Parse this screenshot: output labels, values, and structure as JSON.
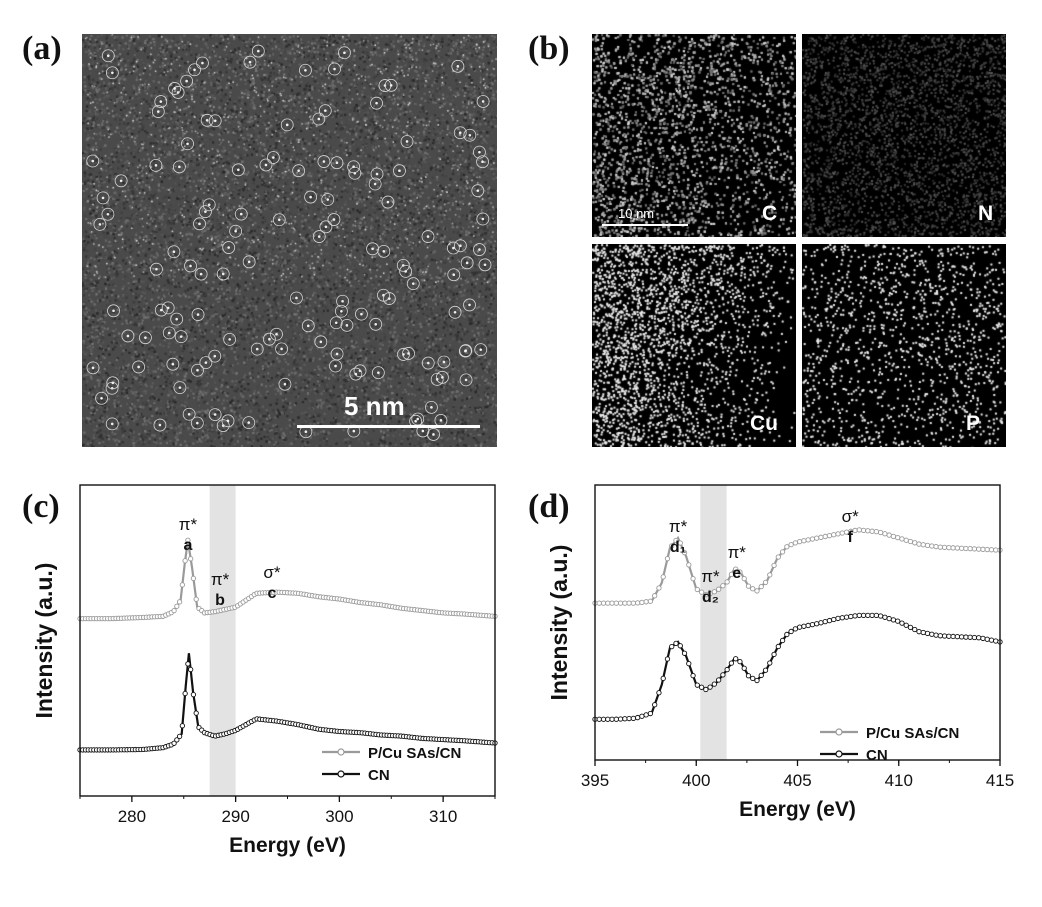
{
  "panels": {
    "a": {
      "label": "(a)",
      "scale_bar_text": "5 nm"
    },
    "b": {
      "label": "(b)",
      "scale_bar_text": "10 nm",
      "maps": [
        {
          "element": "C",
          "density": 0.6,
          "tone": "gray"
        },
        {
          "element": "N",
          "density": 0.3,
          "tone": "dim"
        },
        {
          "element": "Cu",
          "density": 0.35,
          "tone": "white"
        },
        {
          "element": "P",
          "density": 0.12,
          "tone": "white"
        }
      ]
    },
    "c": {
      "label": "(c)"
    },
    "d": {
      "label": "(d)"
    }
  },
  "chart_data": [
    {
      "type": "line",
      "panel": "(c)",
      "xlabel": "Energy (eV)",
      "ylabel": "Intensity (a.u.)",
      "xlim": [
        275,
        315
      ],
      "xticks": [
        280,
        290,
        300,
        310
      ],
      "shaded_region": [
        287.5,
        290
      ],
      "annotations": [
        {
          "symbol": "π*",
          "letter": "a",
          "x": 285.4
        },
        {
          "symbol": "π*",
          "letter": "b",
          "x": 288.5
        },
        {
          "symbol": "σ*",
          "letter": "c",
          "x": 293.5
        }
      ],
      "series": [
        {
          "name": "P/Cu SAs/CN",
          "color": "#9a9a9a",
          "x": [
            275,
            278,
            281,
            283,
            284,
            284.7,
            285.1,
            285.4,
            285.8,
            286.3,
            287,
            288,
            289,
            290,
            291,
            292,
            294,
            296,
            298,
            300,
            302,
            304,
            306,
            308,
            310,
            312,
            315
          ],
          "y": [
            6.2,
            6.2,
            6.25,
            6.3,
            6.5,
            7.0,
            8.6,
            9.6,
            8.4,
            6.7,
            6.45,
            6.5,
            6.6,
            6.7,
            7.0,
            7.3,
            7.35,
            7.3,
            7.15,
            7.05,
            6.9,
            6.8,
            6.65,
            6.55,
            6.45,
            6.4,
            6.3
          ]
        },
        {
          "name": "CN",
          "color": "#111111",
          "x": [
            275,
            278,
            281,
            283,
            284,
            284.8,
            285.2,
            285.5,
            285.9,
            286.4,
            287,
            288,
            289,
            290,
            291,
            292,
            294,
            296,
            298,
            300,
            302,
            304,
            306,
            308,
            310,
            312,
            315
          ],
          "y": [
            0.5,
            0.5,
            0.52,
            0.6,
            0.75,
            1.2,
            3.3,
            4.7,
            3.0,
            1.5,
            1.25,
            1.1,
            1.2,
            1.35,
            1.6,
            1.85,
            1.75,
            1.6,
            1.4,
            1.3,
            1.25,
            1.15,
            1.1,
            1.0,
            0.95,
            0.9,
            0.8
          ]
        }
      ],
      "legend": "bottom-right"
    },
    {
      "type": "line",
      "panel": "(d)",
      "xlabel": "Energy (eV)",
      "ylabel": "Intensity (a.u.)",
      "xlim": [
        395,
        415
      ],
      "xticks": [
        395,
        400,
        405,
        410,
        415
      ],
      "shaded_region": [
        400.2,
        401.5
      ],
      "annotations": [
        {
          "symbol": "π*",
          "letter": "d₁",
          "x": 399.1
        },
        {
          "symbol": "π*",
          "letter": "d₂",
          "x": 400.7
        },
        {
          "symbol": "π*",
          "letter": "e",
          "x": 402.0
        },
        {
          "symbol": "σ*",
          "letter": "f",
          "x": 407.6
        }
      ],
      "series": [
        {
          "name": "P/Cu SAs/CN",
          "color": "#9a9a9a",
          "x": [
            395,
            396,
            397,
            397.8,
            398.3,
            398.7,
            399.1,
            399.5,
            400.0,
            400.5,
            401.0,
            401.5,
            401.9,
            402.2,
            402.6,
            403.0,
            403.5,
            404.0,
            404.5,
            405.0,
            406.0,
            407.0,
            408.0,
            409.0,
            410.0,
            411.0,
            412.0,
            413.0,
            414.0,
            415.0
          ],
          "y": [
            6.2,
            6.2,
            6.2,
            6.3,
            7.2,
            8.9,
            9.4,
            8.5,
            6.9,
            6.6,
            6.8,
            7.2,
            7.9,
            7.7,
            7.0,
            6.8,
            7.3,
            8.4,
            9.0,
            9.2,
            9.4,
            9.6,
            9.8,
            9.7,
            9.4,
            9.1,
            8.95,
            8.9,
            8.85,
            8.8
          ]
        },
        {
          "name": "CN",
          "color": "#111111",
          "x": [
            395,
            396,
            397,
            397.8,
            398.3,
            398.7,
            399.1,
            399.5,
            400.0,
            400.5,
            401.0,
            401.5,
            401.9,
            402.2,
            402.6,
            403.0,
            403.5,
            404.0,
            404.5,
            405.0,
            406.0,
            407.0,
            408.0,
            409.0,
            410.0,
            411.0,
            412.0,
            413.0,
            414.0,
            415.0
          ],
          "y": [
            0.5,
            0.5,
            0.55,
            0.8,
            2.2,
            4.0,
            4.3,
            3.6,
            2.2,
            1.95,
            2.3,
            2.9,
            3.5,
            3.3,
            2.6,
            2.4,
            3.0,
            4.0,
            4.7,
            5.0,
            5.2,
            5.45,
            5.6,
            5.6,
            5.3,
            4.8,
            4.6,
            4.55,
            4.5,
            4.3
          ]
        }
      ],
      "legend": "bottom-right"
    }
  ]
}
